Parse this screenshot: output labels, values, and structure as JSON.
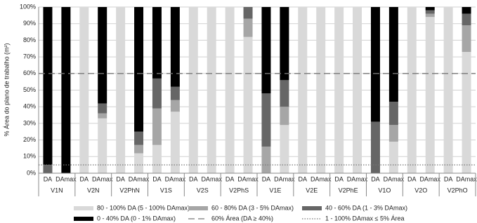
{
  "chart_data": {
    "type": "stacked_bar",
    "y_label": "% Área do plano de trabalho (m²)",
    "groups": [
      "V1N",
      "V2N",
      "V2PhN",
      "V1S",
      "V2S",
      "V2PhS",
      "V1E",
      "V2E",
      "V2PhE",
      "V1O",
      "V2O",
      "V2PhO"
    ],
    "categories": [
      "DA",
      "DAmax",
      "DA",
      "DAmax",
      "DA",
      "DAmax",
      "DA",
      "DAmax",
      "DA",
      "DAmax",
      "DA",
      "DAmax",
      "DA",
      "DAmax",
      "DA",
      "DAmax",
      "DA",
      "DAmax",
      "DA",
      "DAmax",
      "DA",
      "DAmax",
      "DA",
      "DAmax"
    ],
    "series": [
      {
        "name": "80 - 100% DA  (5 - 100% DAmax)",
        "color": "#d9d9d9",
        "values": [
          0,
          0,
          100,
          33,
          100,
          12,
          17,
          37,
          100,
          100,
          100,
          82,
          0,
          29,
          100,
          100,
          100,
          100,
          0,
          19,
          100,
          94,
          100,
          73
        ]
      },
      {
        "name": "60 - 80% DA  (3 - 5% DAmax)",
        "color": "#a6a6a6",
        "values": [
          0,
          0,
          0,
          3,
          0,
          5,
          22,
          7,
          0,
          0,
          0,
          11,
          16,
          11,
          0,
          0,
          0,
          0,
          0,
          10,
          0,
          2,
          0,
          16
        ]
      },
      {
        "name": "40 - 60% DA  (1 - 3% DAmax)",
        "color": "#666666",
        "values": [
          5,
          0,
          0,
          6,
          0,
          8,
          18,
          8,
          0,
          0,
          0,
          7,
          32,
          16,
          0,
          0,
          0,
          0,
          31,
          14,
          0,
          2,
          0,
          7
        ]
      },
      {
        "name": "0 - 40% DA  (0 - 1% DAmax)",
        "color": "#000000",
        "values": [
          95,
          100,
          0,
          58,
          0,
          75,
          43,
          48,
          0,
          0,
          0,
          0,
          52,
          44,
          0,
          0,
          0,
          0,
          69,
          57,
          0,
          2,
          0,
          4
        ]
      }
    ],
    "reference_lines": [
      {
        "name": "60% Área (DA ≥ 40%)",
        "value": 60,
        "style": "dashed",
        "color": "#777777"
      },
      {
        "name": "1 - 100% DAmax ≤ 5% Área",
        "value": 5,
        "style": "dotted",
        "color": "#777777"
      }
    ],
    "ylim": [
      0,
      100
    ],
    "yticks": [
      {
        "value": 0,
        "label": "0%"
      },
      {
        "value": 10,
        "label": "10%"
      },
      {
        "value": 20,
        "label": "20%"
      },
      {
        "value": 30,
        "label": "30%"
      },
      {
        "value": 40,
        "label": "40%"
      },
      {
        "value": 50,
        "label": "50%"
      },
      {
        "value": 60,
        "label": "60%"
      },
      {
        "value": 70,
        "label": "70%"
      },
      {
        "value": 80,
        "label": "80%"
      },
      {
        "value": 90,
        "label": "90%"
      },
      {
        "value": 100,
        "label": "100%"
      }
    ],
    "grid": true
  }
}
